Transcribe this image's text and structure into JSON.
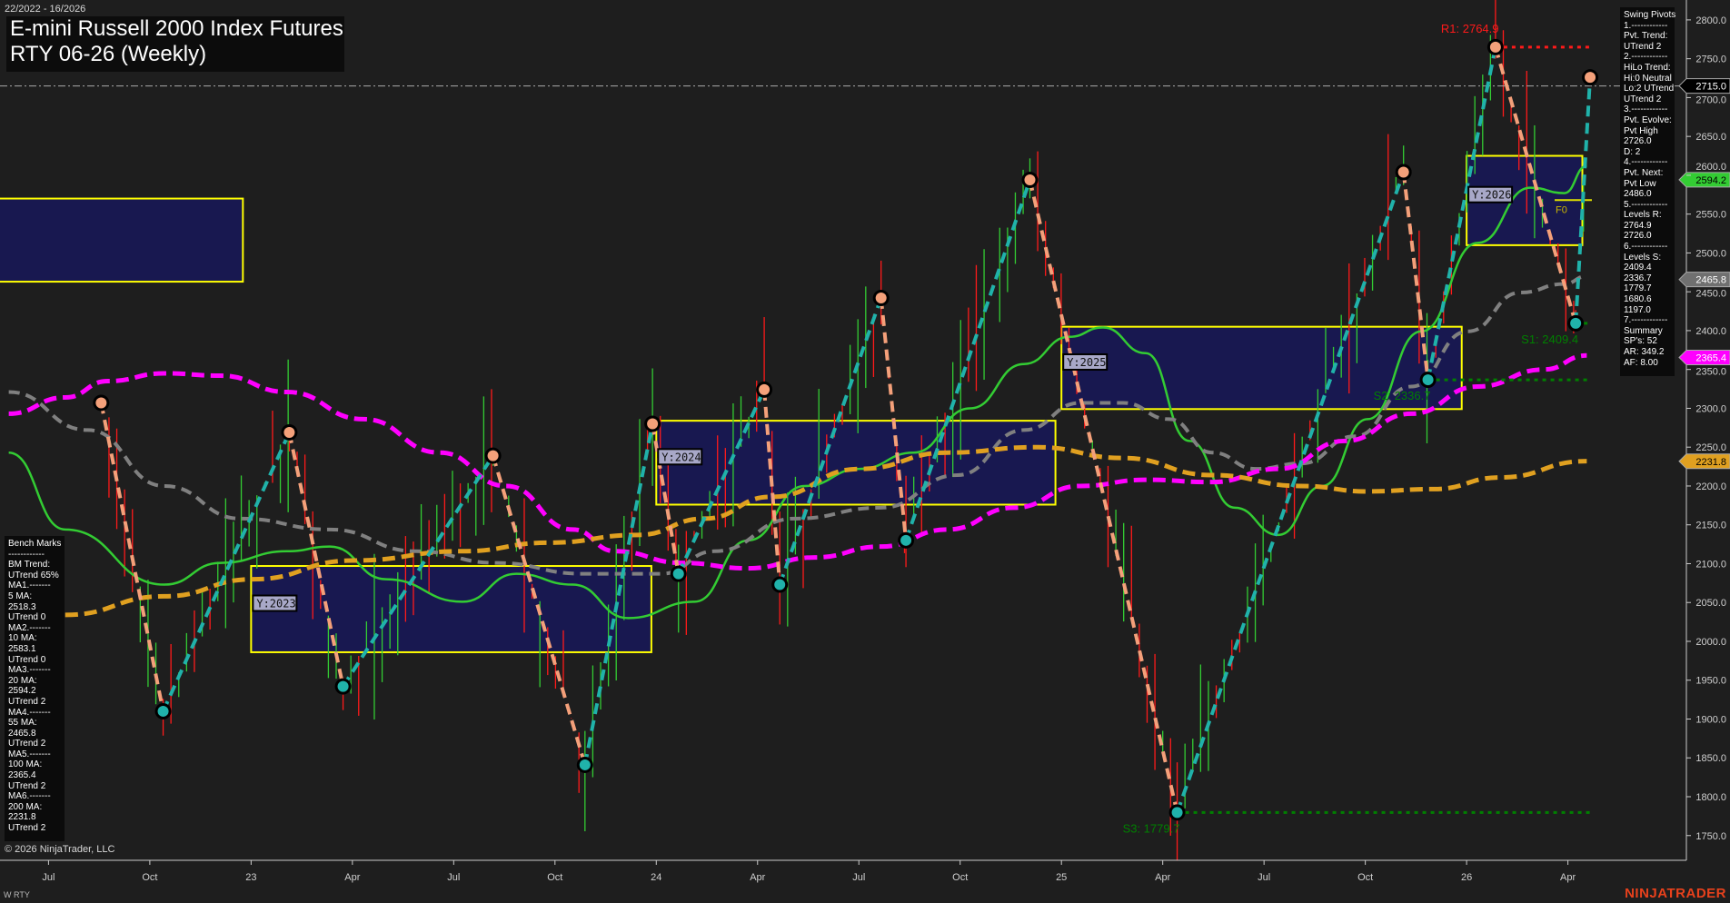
{
  "header": {
    "date_range": "22/2022 - 16/2026",
    "title_line1": "E-mini Russell 2000 Index Futures",
    "title_line2": "RTY 06-26 (Weekly)"
  },
  "footer": {
    "copyright": "© 2026 NinjaTrader, LLC",
    "instrument_tag": "W RTY",
    "brand": "NINJATRADER"
  },
  "swing_pivots_panel": {
    "lines": [
      "Swing Pivots",
      "1.------------",
      "Pvt. Trend:",
      "UTrend 2",
      "2.------------",
      "HiLo Trend:",
      "Hi:0 Neutral",
      "Lo:2 UTrend",
      "UTrend 2",
      "3.------------",
      "Pvt. Evolve:",
      "Pvt High",
      "2726.0",
      "D: 2",
      "4.------------",
      "Pvt. Next:",
      "Pvt Low",
      "2486.0",
      "5.------------",
      "Levels R:",
      "2764.9",
      "2726.0",
      "6.------------",
      "Levels S:",
      "2409.4",
      "2336.7",
      "1779.7",
      "1680.6",
      "1197.0",
      "7.------------",
      "Summary",
      "SP's: 52",
      "AR: 349.2",
      "AF: 8.00"
    ]
  },
  "bench_marks_panel": {
    "lines": [
      "Bench Marks",
      "------------",
      "BM Trend:",
      "UTrend 65%",
      "MA1.-------",
      "5 MA:",
      "2518.3",
      "UTrend 0",
      "MA2.-------",
      "10 MA:",
      "2583.1",
      "UTrend 0",
      "MA3.-------",
      "20 MA:",
      "2594.2",
      "UTrend 2",
      "MA4.-------",
      "55 MA:",
      "2465.8",
      "UTrend 2",
      "MA5.-------",
      "100 MA:",
      "2365.4",
      "UTrend 2",
      "MA6.-------",
      "200 MA:",
      "2231.8",
      "UTrend 2"
    ]
  },
  "chart_data": {
    "type": "line",
    "scale": "linear",
    "ylim": [
      1720,
      2830
    ],
    "xlim": [
      "2022-05-01",
      "2026-05-10"
    ],
    "y_ticks": [
      1750,
      1800,
      1850,
      1900,
      1950,
      2000,
      2050,
      2100,
      2150,
      2200,
      2250,
      2300,
      2350,
      2400,
      2450,
      2500,
      2550,
      2600,
      2650,
      2700,
      2750,
      2800
    ],
    "x_ticks": [
      {
        "label": "Jul",
        "date": "2022-07-01"
      },
      {
        "label": "Oct",
        "date": "2022-10-01"
      },
      {
        "label": "23",
        "date": "2023-01-01"
      },
      {
        "label": "Apr",
        "date": "2023-04-01"
      },
      {
        "label": "Jul",
        "date": "2023-07-01"
      },
      {
        "label": "Oct",
        "date": "2023-10-01"
      },
      {
        "label": "24",
        "date": "2024-01-01"
      },
      {
        "label": "Apr",
        "date": "2024-04-01"
      },
      {
        "label": "Jul",
        "date": "2024-07-01"
      },
      {
        "label": "Oct",
        "date": "2024-10-01"
      },
      {
        "label": "25",
        "date": "2025-01-01"
      },
      {
        "label": "Apr",
        "date": "2025-04-01"
      },
      {
        "label": "Jul",
        "date": "2025-07-01"
      },
      {
        "label": "Oct",
        "date": "2025-10-01"
      },
      {
        "label": "26",
        "date": "2026-01-01"
      },
      {
        "label": "Apr",
        "date": "2026-04-01"
      }
    ],
    "colors": {
      "background": "#1e1e1e",
      "up_bar": "#33cc33",
      "down_bar": "#ff1a1a",
      "swing_up": "#20b2aa",
      "swing_down": "#f4a07a",
      "ma20": "#33cc33",
      "ma55": "#808080",
      "ma100": "#ff00ff",
      "ma200": "#e0a020",
      "year_box_fill": "#181850",
      "year_box_border": "#ffff00",
      "resistance": "#ff1a1a",
      "support": "#008000"
    },
    "swing_pivots": [
      {
        "date": "2022-08-18",
        "price": 2307,
        "type": "high"
      },
      {
        "date": "2022-10-13",
        "price": 1910,
        "type": "low"
      },
      {
        "date": "2023-02-05",
        "price": 2269,
        "type": "high"
      },
      {
        "date": "2023-03-23",
        "price": 1942,
        "type": "low"
      },
      {
        "date": "2023-08-06",
        "price": 2239,
        "type": "high"
      },
      {
        "date": "2023-10-28",
        "price": 1841,
        "type": "low"
      },
      {
        "date": "2023-12-28",
        "price": 2280,
        "type": "high"
      },
      {
        "date": "2024-01-21",
        "price": 2087,
        "type": "low"
      },
      {
        "date": "2024-04-07",
        "price": 2324,
        "type": "high"
      },
      {
        "date": "2024-04-21",
        "price": 2073,
        "type": "low"
      },
      {
        "date": "2024-07-21",
        "price": 2442,
        "type": "high"
      },
      {
        "date": "2024-08-13",
        "price": 2130,
        "type": "low"
      },
      {
        "date": "2024-12-03",
        "price": 2594,
        "type": "high"
      },
      {
        "date": "2025-04-14",
        "price": 1779.7,
        "type": "low"
      },
      {
        "date": "2025-11-05",
        "price": 2604,
        "type": "high"
      },
      {
        "date": "2025-11-27",
        "price": 2336.7,
        "type": "low"
      },
      {
        "date": "2026-01-27",
        "price": 2764.9,
        "type": "high"
      },
      {
        "date": "2026-04-08",
        "price": 2409.4,
        "type": "low"
      },
      {
        "date": "2026-04-21",
        "price": 2726.0,
        "type": "high"
      }
    ],
    "series": [
      {
        "key": "ma20",
        "style": "solid",
        "points": [
          [
            "2022-05-26",
            2243
          ],
          [
            "2022-07-16",
            2144
          ],
          [
            "2022-10-14",
            2073
          ],
          [
            "2022-12-04",
            2101
          ],
          [
            "2023-02-03",
            2116
          ],
          [
            "2023-03-11",
            2122
          ],
          [
            "2023-05-01",
            2080
          ],
          [
            "2023-07-09",
            2051
          ],
          [
            "2023-08-27",
            2087
          ],
          [
            "2023-10-17",
            2073
          ],
          [
            "2023-12-06",
            2030
          ],
          [
            "2024-02-05",
            2051
          ],
          [
            "2024-03-23",
            2130
          ],
          [
            "2024-05-13",
            2200
          ],
          [
            "2024-07-02",
            2222
          ],
          [
            "2024-08-20",
            2243
          ],
          [
            "2024-10-10",
            2300
          ],
          [
            "2024-11-28",
            2357
          ],
          [
            "2025-01-08",
            2392
          ],
          [
            "2025-02-08",
            2404
          ],
          [
            "2025-03-16",
            2371
          ],
          [
            "2025-04-25",
            2258
          ],
          [
            "2025-06-05",
            2172
          ],
          [
            "2025-07-14",
            2137
          ],
          [
            "2025-08-23",
            2200
          ],
          [
            "2025-10-03",
            2286
          ],
          [
            "2025-11-21",
            2399
          ],
          [
            "2026-01-11",
            2513
          ],
          [
            "2026-02-28",
            2584
          ],
          [
            "2026-03-28",
            2577
          ],
          [
            "2026-04-18",
            2612
          ]
        ]
      },
      {
        "key": "ma55",
        "style": "dashed",
        "points": [
          [
            "2022-05-26",
            2321
          ],
          [
            "2022-08-06",
            2272
          ],
          [
            "2022-10-14",
            2200
          ],
          [
            "2022-12-22",
            2158
          ],
          [
            "2023-03-11",
            2144
          ],
          [
            "2023-05-28",
            2116
          ],
          [
            "2023-08-09",
            2101
          ],
          [
            "2023-10-26",
            2087
          ],
          [
            "2024-01-06",
            2087
          ],
          [
            "2024-02-23",
            2116
          ],
          [
            "2024-05-04",
            2158
          ],
          [
            "2024-07-21",
            2172
          ],
          [
            "2024-09-29",
            2214
          ],
          [
            "2024-11-28",
            2272
          ],
          [
            "2025-01-18",
            2307
          ],
          [
            "2025-02-26",
            2307
          ],
          [
            "2025-04-07",
            2286
          ],
          [
            "2025-05-15",
            2243
          ],
          [
            "2025-06-24",
            2222
          ],
          [
            "2025-08-04",
            2229
          ],
          [
            "2025-09-22",
            2264
          ],
          [
            "2025-11-12",
            2328
          ],
          [
            "2026-01-02",
            2399
          ],
          [
            "2026-02-19",
            2449
          ],
          [
            "2026-03-28",
            2460
          ],
          [
            "2026-04-18",
            2470
          ]
        ]
      },
      {
        "key": "ma100",
        "style": "dashed",
        "points": [
          [
            "2022-05-26",
            2293
          ],
          [
            "2022-07-16",
            2314
          ],
          [
            "2022-08-24",
            2335
          ],
          [
            "2022-10-14",
            2345
          ],
          [
            "2022-12-04",
            2342
          ],
          [
            "2023-02-03",
            2321
          ],
          [
            "2023-04-11",
            2286
          ],
          [
            "2023-06-19",
            2243
          ],
          [
            "2023-08-18",
            2200
          ],
          [
            "2023-10-17",
            2144
          ],
          [
            "2023-11-25",
            2116
          ],
          [
            "2024-01-24",
            2101
          ],
          [
            "2024-03-23",
            2094
          ],
          [
            "2024-05-22",
            2108
          ],
          [
            "2024-07-21",
            2122
          ],
          [
            "2024-09-20",
            2144
          ],
          [
            "2024-11-19",
            2172
          ],
          [
            "2025-01-18",
            2200
          ],
          [
            "2025-03-16",
            2208
          ],
          [
            "2025-05-15",
            2205
          ],
          [
            "2025-07-14",
            2222
          ],
          [
            "2025-09-13",
            2258
          ],
          [
            "2025-11-12",
            2293
          ],
          [
            "2026-01-11",
            2328
          ],
          [
            "2026-03-10",
            2350
          ],
          [
            "2026-04-18",
            2368
          ]
        ]
      },
      {
        "key": "ma200",
        "style": "dashed",
        "points": [
          [
            "2022-07-16",
            2034
          ],
          [
            "2022-10-14",
            2058
          ],
          [
            "2023-01-03",
            2080
          ],
          [
            "2023-04-01",
            2104
          ],
          [
            "2023-07-09",
            2116
          ],
          [
            "2023-09-26",
            2127
          ],
          [
            "2023-12-15",
            2137
          ],
          [
            "2024-02-14",
            2158
          ],
          [
            "2024-04-13",
            2186
          ],
          [
            "2024-07-02",
            2222
          ],
          [
            "2024-09-20",
            2243
          ],
          [
            "2024-12-09",
            2250
          ],
          [
            "2025-02-26",
            2236
          ],
          [
            "2025-05-15",
            2214
          ],
          [
            "2025-08-04",
            2200
          ],
          [
            "2025-10-03",
            2193
          ],
          [
            "2025-12-02",
            2196
          ],
          [
            "2026-02-01",
            2211
          ],
          [
            "2026-04-18",
            2232
          ]
        ]
      }
    ],
    "year_boxes": [
      {
        "label": "",
        "start": "2022-05-01",
        "end": "2022-12-24",
        "high": 2570,
        "low": 2463
      },
      {
        "label": "Y:2023",
        "start": "2023-01-01",
        "end": "2023-12-27",
        "high": 2097,
        "low": 1986
      },
      {
        "label": "Y:2024",
        "start": "2024-01-01",
        "end": "2024-12-26",
        "high": 2284,
        "low": 2176
      },
      {
        "label": "Y:2025",
        "start": "2025-01-01",
        "end": "2025-12-27",
        "high": 2405,
        "low": 2299
      },
      {
        "label": "Y:2026",
        "start": "2026-01-01",
        "end": "2026-04-14",
        "high": 2625,
        "low": 2510
      }
    ],
    "levels": [
      {
        "label": "R1: 2764.9",
        "price": 2764.9,
        "kind": "resistance",
        "start": "2026-01-27"
      },
      {
        "label": "S1: 2409.4",
        "price": 2409.4,
        "kind": "support",
        "start": "2026-04-08"
      },
      {
        "label": "S2: 2336.7",
        "price": 2336.7,
        "kind": "support",
        "start": "2025-11-27"
      },
      {
        "label": "S3: 1779.7",
        "price": 1779.7,
        "kind": "support",
        "start": "2025-04-14"
      }
    ],
    "f0": {
      "label": "F0",
      "price": 2568
    },
    "current_price_line": 2715.0,
    "price_markers": [
      {
        "label": "2715.0",
        "price": 2715.0,
        "bg": "#000000",
        "fg": "#ffffff"
      },
      {
        "label": "2594.2",
        "price": 2594.2,
        "bg": "#33cc33",
        "fg": "#000000"
      },
      {
        "label": "2465.8",
        "price": 2465.8,
        "bg": "#707070",
        "fg": "#ffffff"
      },
      {
        "label": "2365.4",
        "price": 2365.4,
        "bg": "#ff00ff",
        "fg": "#ffffff"
      },
      {
        "label": "2231.8",
        "price": 2231.8,
        "bg": "#e0a020",
        "fg": "#000000"
      }
    ]
  }
}
